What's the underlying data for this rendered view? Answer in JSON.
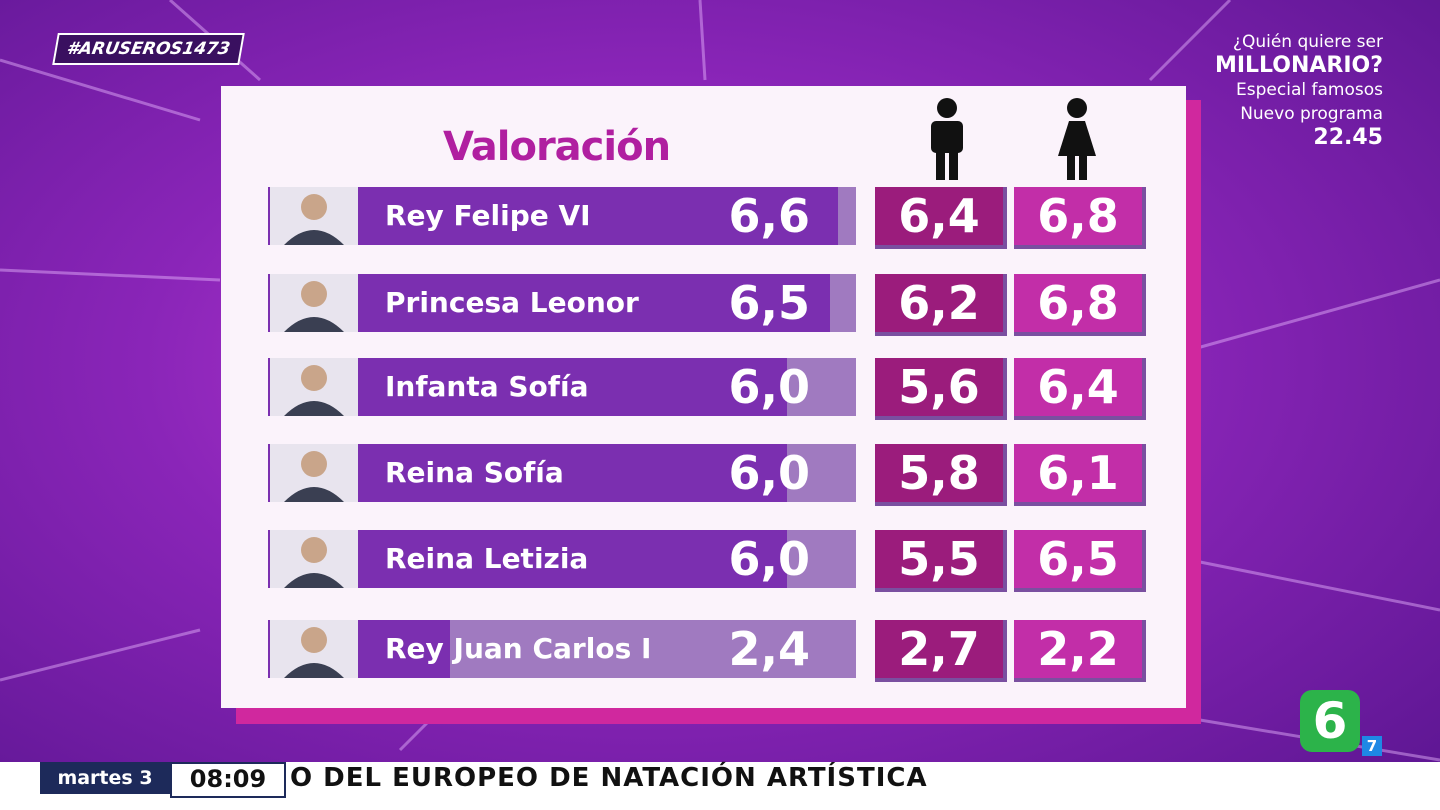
{
  "hashtag": "#ARUSEROS1473",
  "promo": {
    "line1": "¿Quién quiere ser",
    "line2": "MILLONARIO?",
    "line3": "Especial famosos",
    "line4": "Nuevo programa",
    "line5": "22.45"
  },
  "table": {
    "title": "Valoración",
    "rows": [
      {
        "name": "Rey Felipe VI",
        "total": "6,6",
        "men": "6,4",
        "women": "6,8"
      },
      {
        "name": "Princesa Leonor",
        "total": "6,5",
        "men": "6,2",
        "women": "6,8"
      },
      {
        "name": "Infanta Sofía",
        "total": "6,0",
        "men": "5,6",
        "women": "6,4"
      },
      {
        "name": "Reina Sofía",
        "total": "6,0",
        "men": "5,8",
        "women": "6,1"
      },
      {
        "name": "Reina Letizia",
        "total": "6,0",
        "men": "5,5",
        "women": "6,5"
      },
      {
        "name": "Rey Juan Carlos I",
        "total": "2,4",
        "men": "2,7",
        "women": "2,2"
      }
    ]
  },
  "ticker": {
    "day": "martes 3",
    "time": "08:09",
    "headline": "O DEL EUROPEO DE NATACIÓN ARTÍSTICA"
  },
  "logo": {
    "main": "6",
    "sub": "7"
  }
}
